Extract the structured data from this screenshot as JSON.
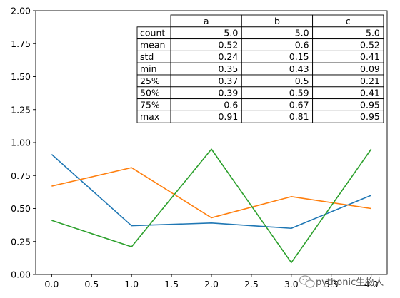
{
  "chart_data": {
    "type": "line",
    "x": [
      0,
      1,
      2,
      3,
      4
    ],
    "series": [
      {
        "name": "a",
        "values": [
          0.91,
          0.37,
          0.39,
          0.35,
          0.6
        ],
        "color": "#1f77b4"
      },
      {
        "name": "b",
        "values": [
          0.67,
          0.81,
          0.43,
          0.59,
          0.5
        ],
        "color": "#ff7f0e"
      },
      {
        "name": "c",
        "values": [
          0.41,
          0.21,
          0.95,
          0.09,
          0.95
        ],
        "color": "#2ca02c"
      }
    ],
    "xlim": [
      -0.2,
      4.2
    ],
    "ylim": [
      0,
      2.0
    ],
    "xticks": [
      0.0,
      0.5,
      1.0,
      1.5,
      2.0,
      2.5,
      3.0,
      3.5,
      4.0
    ],
    "xtick_labels": [
      "0.0",
      "0.5",
      "1.0",
      "1.5",
      "2.0",
      "2.5",
      "3.0",
      "3.5",
      "4.0"
    ],
    "yticks": [
      0.0,
      0.25,
      0.5,
      0.75,
      1.0,
      1.25,
      1.5,
      1.75,
      2.0
    ],
    "ytick_labels": [
      "0.00",
      "0.25",
      "0.50",
      "0.75",
      "1.00",
      "1.25",
      "1.50",
      "1.75",
      "2.00"
    ],
    "grid": false,
    "title": "",
    "xlabel": "",
    "ylabel": "",
    "table": {
      "placement": "top-right",
      "columns": [
        "a",
        "b",
        "c"
      ],
      "rows": [
        {
          "label": "count",
          "values": [
            "5.0",
            "5.0",
            "5.0"
          ]
        },
        {
          "label": "mean",
          "values": [
            "0.52",
            "0.6",
            "0.52"
          ]
        },
        {
          "label": "std",
          "values": [
            "0.24",
            "0.15",
            "0.41"
          ]
        },
        {
          "label": "min",
          "values": [
            "0.35",
            "0.43",
            "0.09"
          ]
        },
        {
          "label": "25%",
          "values": [
            "0.37",
            "0.5",
            "0.21"
          ]
        },
        {
          "label": "50%",
          "values": [
            "0.39",
            "0.59",
            "0.41"
          ]
        },
        {
          "label": "75%",
          "values": [
            "0.6",
            "0.67",
            "0.95"
          ]
        },
        {
          "label": "max",
          "values": [
            "0.91",
            "0.81",
            "0.95"
          ]
        }
      ]
    }
  },
  "watermark": {
    "text": "pythonic生物人",
    "icon": "wechat-icon"
  }
}
